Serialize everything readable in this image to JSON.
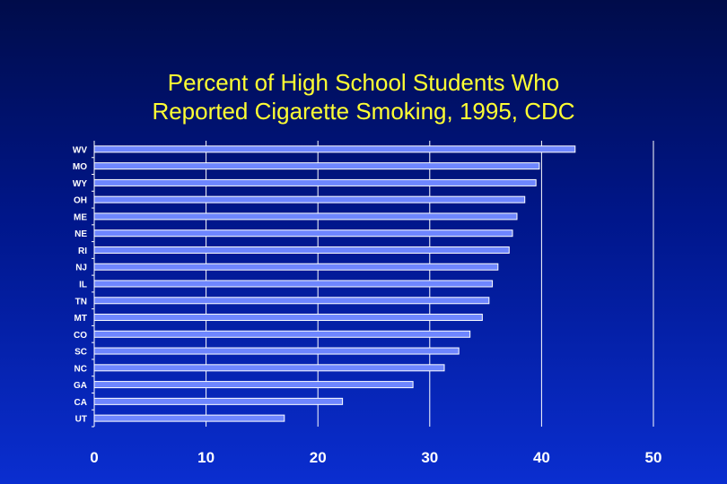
{
  "chart_data": {
    "type": "bar",
    "orientation": "horizontal",
    "title_lines": [
      "Percent of High School Students Who",
      "Reported Cigarette Smoking, 1995, CDC"
    ],
    "categories": [
      "WV",
      "MO",
      "WY",
      "OH",
      "ME",
      "NE",
      "RI",
      "NJ",
      "IL",
      "TN",
      "MT",
      "CO",
      "SC",
      "NC",
      "GA",
      "CA",
      "UT"
    ],
    "values": [
      43.0,
      39.8,
      39.5,
      38.5,
      37.8,
      37.4,
      37.1,
      36.1,
      35.6,
      35.3,
      34.7,
      33.6,
      32.6,
      31.3,
      28.5,
      22.2,
      17.0
    ],
    "xlim": [
      0,
      50
    ],
    "xticks": [
      "0",
      "10",
      "20",
      "30",
      "40",
      "50"
    ],
    "xlabel": "",
    "ylabel": "",
    "grid": "vertical",
    "legend": "none"
  },
  "colors": {
    "bar_fill": "#6e86ff",
    "bar_edge": "#ffffff",
    "grid": "#ffffff",
    "title": "#ffff33",
    "tick_label": "#ffffff"
  }
}
